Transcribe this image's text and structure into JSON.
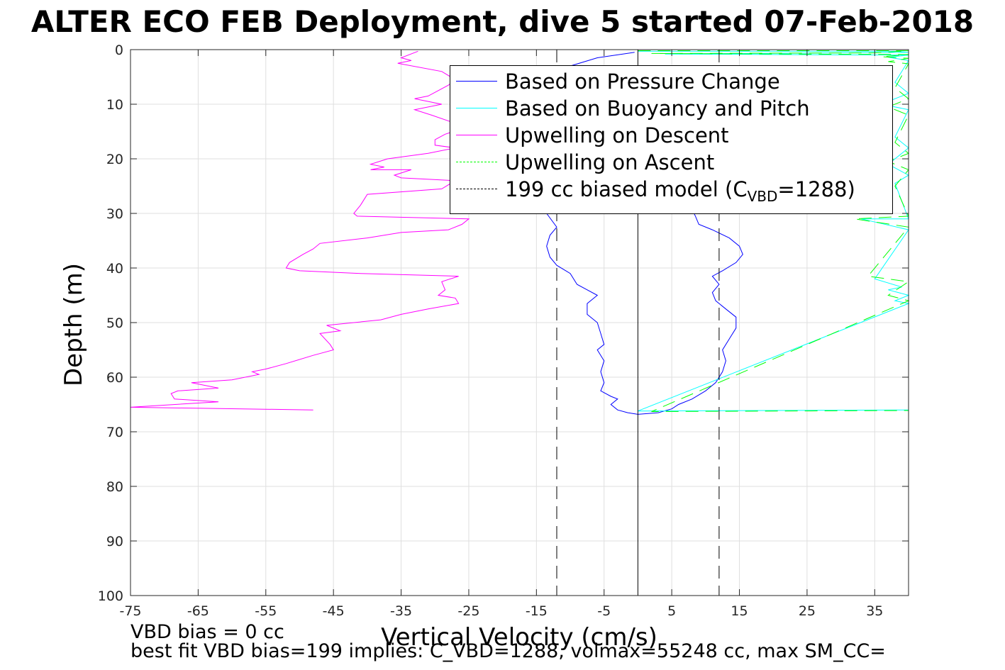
{
  "title": "ALTER ECO FEB Deployment, dive 5 started 07-Feb-2018",
  "notes": {
    "line1": "VBD bias = 0 cc",
    "line2": "best fit VBD bias=199 implies: C_VBD=1288, volmax=55248 cc, max SM_CC="
  },
  "legend": {
    "items": [
      {
        "label": "Based on Pressure Change",
        "color": "#0000ff",
        "dash": "solid"
      },
      {
        "label": "Based on Buoyancy and Pitch",
        "color": "#00ffff",
        "dash": "solid"
      },
      {
        "label": "Upwelling on Descent",
        "color": "#ff00ff",
        "dash": "solid"
      },
      {
        "label": "Upwelling on Ascent",
        "color": "#00ff00",
        "dash": "dashed"
      },
      {
        "label_prefix": "199 cc biased model (C",
        "label_sub": "VBD",
        "label_suffix": "=1288)",
        "color": "#000000",
        "dash": "dashed"
      }
    ]
  },
  "chart_data": {
    "type": "line",
    "title": "ALTER ECO FEB Deployment, dive 5 started 07-Feb-2018",
    "xlabel": "Vertical Velocity (cm/s)",
    "ylabel": "Depth (m)",
    "xlim": [
      -75,
      40
    ],
    "ylim": [
      0,
      100
    ],
    "y_reversed": true,
    "grid": true,
    "legend_position": "top-right",
    "xticks": [
      -75,
      -65,
      -55,
      -45,
      -35,
      -25,
      -15,
      -5,
      5,
      15,
      25,
      35
    ],
    "yticks": [
      0,
      10,
      20,
      30,
      40,
      50,
      60,
      70,
      80,
      90,
      100
    ],
    "series": [
      {
        "name": "Based on Pressure Change",
        "color": "#0000ff",
        "dash": "solid",
        "points": [
          [
            -0.5,
            0.5
          ],
          [
            -6,
            1.5
          ],
          [
            -10,
            3
          ],
          [
            -12,
            6
          ],
          [
            -13,
            10
          ],
          [
            -12.5,
            15
          ],
          [
            -13,
            20
          ],
          [
            -13.5,
            25
          ],
          [
            -13.5,
            30
          ],
          [
            -12,
            32.5
          ],
          [
            -13,
            34
          ],
          [
            -13.5,
            36
          ],
          [
            -13,
            38
          ],
          [
            -12,
            39.5
          ],
          [
            -10,
            41
          ],
          [
            -9,
            43
          ],
          [
            -7.5,
            44
          ],
          [
            -6,
            45
          ],
          [
            -7.5,
            46.5
          ],
          [
            -7.5,
            48.5
          ],
          [
            -6,
            50
          ],
          [
            -5.5,
            52
          ],
          [
            -5,
            54
          ],
          [
            -6,
            55
          ],
          [
            -5,
            57
          ],
          [
            -5.5,
            59
          ],
          [
            -5,
            61
          ],
          [
            -5.5,
            62.5
          ],
          [
            -4,
            63.5
          ],
          [
            -3,
            64
          ],
          [
            -4,
            65
          ],
          [
            -3,
            66
          ],
          [
            -1.5,
            66.5
          ],
          [
            0,
            66.8
          ],
          [
            3,
            66.5
          ],
          [
            5,
            65.8
          ],
          [
            6,
            65
          ],
          [
            8,
            64
          ],
          [
            10,
            62.5
          ],
          [
            11.5,
            61
          ],
          [
            12.5,
            59
          ],
          [
            13,
            57
          ],
          [
            12.5,
            55
          ],
          [
            13.5,
            53
          ],
          [
            14.5,
            51
          ],
          [
            14.5,
            49
          ],
          [
            13,
            47.5
          ],
          [
            11.5,
            46
          ],
          [
            11,
            44.5
          ],
          [
            12,
            43
          ],
          [
            11,
            41.5
          ],
          [
            12.5,
            40.5
          ],
          [
            14.5,
            39
          ],
          [
            15.5,
            37.5
          ],
          [
            15,
            36
          ],
          [
            13.5,
            34.5
          ],
          [
            11,
            33
          ],
          [
            9,
            32
          ],
          [
            8.5,
            30.5
          ],
          [
            7.5,
            28
          ]
        ]
      },
      {
        "name": "Based on Buoyancy and Pitch",
        "color": "#00ffff",
        "dash": "solid",
        "points": [
          [
            0,
            0.3
          ],
          [
            38,
            0.3
          ],
          [
            40,
            0.5
          ],
          [
            4,
            0.8
          ],
          [
            40,
            1.0
          ],
          [
            37,
            1.4
          ],
          [
            40,
            2
          ],
          [
            38,
            6
          ],
          [
            40,
            8
          ],
          [
            36,
            10
          ],
          [
            40,
            11
          ],
          [
            38,
            16
          ],
          [
            40,
            18
          ],
          [
            37,
            21
          ],
          [
            40,
            23
          ],
          [
            38,
            24.5
          ],
          [
            40,
            31
          ],
          [
            33,
            31
          ],
          [
            40,
            33
          ],
          [
            35,
            42
          ],
          [
            39,
            43.5
          ],
          [
            37,
            44
          ],
          [
            40,
            45
          ],
          [
            38,
            46
          ],
          [
            40,
            46.5
          ],
          [
            0,
            66.2
          ],
          [
            40,
            66
          ]
        ]
      },
      {
        "name": "Upwelling on Descent",
        "color": "#ff00ff",
        "dash": "solid",
        "points": [
          [
            -32.5,
            0.3
          ],
          [
            -35,
            1.5
          ],
          [
            -33.5,
            2
          ],
          [
            -35.5,
            2.5
          ],
          [
            -29,
            4
          ],
          [
            -27,
            5.5
          ],
          [
            -28,
            6.5
          ],
          [
            -31,
            8.5
          ],
          [
            -33,
            9
          ],
          [
            -29,
            10
          ],
          [
            -33,
            11
          ],
          [
            -30.5,
            12
          ],
          [
            -27,
            13.5
          ],
          [
            -26,
            14.5
          ],
          [
            -28.5,
            15.5
          ],
          [
            -30,
            16.5
          ],
          [
            -30,
            17.5
          ],
          [
            -27,
            18
          ],
          [
            -31,
            19
          ],
          [
            -37,
            20
          ],
          [
            -39.5,
            21
          ],
          [
            -37.5,
            21.5
          ],
          [
            -39.5,
            22
          ],
          [
            -33.5,
            22
          ],
          [
            -36,
            23
          ],
          [
            -35,
            23.5
          ],
          [
            -27,
            24
          ],
          [
            -29,
            25.5
          ],
          [
            -40,
            26.5
          ],
          [
            -41,
            28.5
          ],
          [
            -42,
            30
          ],
          [
            -41.5,
            30.5
          ],
          [
            -25,
            31
          ],
          [
            -26,
            32
          ],
          [
            -28,
            33
          ],
          [
            -35,
            33.5
          ],
          [
            -40,
            34.5
          ],
          [
            -47,
            35.5
          ],
          [
            -48,
            36.5
          ],
          [
            -49.5,
            37.5
          ],
          [
            -51.5,
            39
          ],
          [
            -52,
            40
          ],
          [
            -50,
            40.5
          ],
          [
            -41,
            41
          ],
          [
            -26.5,
            41.5
          ],
          [
            -29,
            42.5
          ],
          [
            -28.5,
            44
          ],
          [
            -29.5,
            45
          ],
          [
            -27,
            45.5
          ],
          [
            -26.5,
            46.5
          ],
          [
            -31,
            47.5
          ],
          [
            -35,
            48.5
          ],
          [
            -38,
            49.5
          ],
          [
            -46,
            50.5
          ],
          [
            -44,
            51.5
          ],
          [
            -47,
            52
          ],
          [
            -45.5,
            54
          ],
          [
            -45,
            55
          ],
          [
            -48,
            56
          ],
          [
            -52,
            57.5
          ],
          [
            -55,
            58.5
          ],
          [
            -57,
            59
          ],
          [
            -56,
            59.5
          ],
          [
            -60,
            60.5
          ],
          [
            -66,
            61
          ],
          [
            -62,
            62
          ],
          [
            -68,
            62.5
          ],
          [
            -69,
            63
          ],
          [
            -68.5,
            64
          ],
          [
            -62,
            64.5
          ],
          [
            -75,
            65.5
          ],
          [
            -48,
            66
          ]
        ]
      },
      {
        "name": "Upwelling on Ascent",
        "color": "#00ff00",
        "dash": "dashed",
        "points": [
          [
            0,
            0.2
          ],
          [
            40,
            0.2
          ],
          [
            35,
            0.6
          ],
          [
            2,
            0.7
          ],
          [
            40,
            0.9
          ],
          [
            36,
            1.3
          ],
          [
            40,
            1.6
          ],
          [
            37,
            2.2
          ],
          [
            40,
            2.6
          ],
          [
            38,
            7
          ],
          [
            40,
            9
          ],
          [
            37,
            10.5
          ],
          [
            40,
            12
          ],
          [
            38,
            17
          ],
          [
            40,
            19
          ],
          [
            37,
            20.5
          ],
          [
            40,
            22
          ],
          [
            38,
            25
          ],
          [
            40,
            30.5
          ],
          [
            32,
            31
          ],
          [
            40,
            32.5
          ],
          [
            34,
            41.5
          ],
          [
            40,
            42.5
          ],
          [
            37,
            45
          ],
          [
            40,
            46
          ],
          [
            2,
            66.3
          ],
          [
            40,
            66.1
          ]
        ]
      },
      {
        "name": "199 cc biased model",
        "color": "#000000",
        "dash": "dashed",
        "points": [
          [
            -12,
            0
          ],
          [
            -12,
            100
          ]
        ]
      },
      {
        "name": "199 cc biased model",
        "color": "#000000",
        "dash": "dashed",
        "points": [
          [
            12,
            0
          ],
          [
            12,
            100
          ]
        ]
      },
      {
        "name": "zero line",
        "color": "#000000",
        "dash": "solid",
        "points": [
          [
            0,
            0
          ],
          [
            0,
            100
          ]
        ]
      }
    ]
  }
}
